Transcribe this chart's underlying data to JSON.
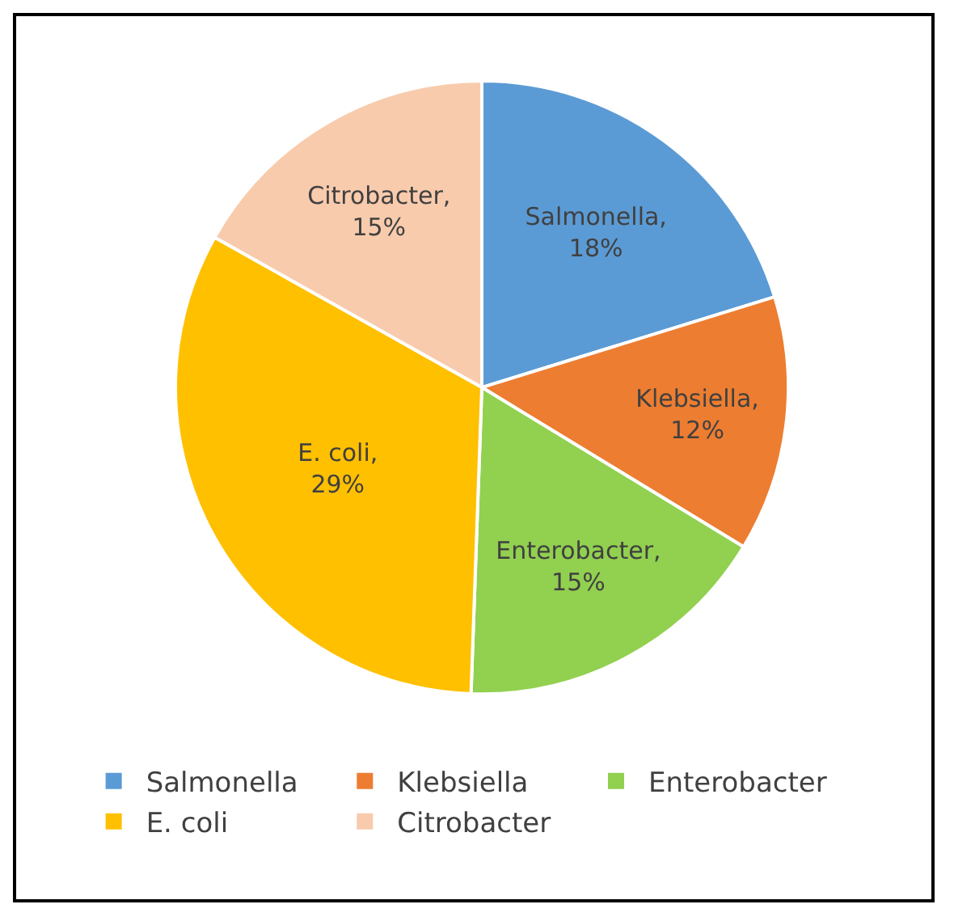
{
  "chart_data": {
    "type": "pie",
    "categories": [
      "Salmonella",
      "Klebsiella",
      "Enterobacter",
      "E. coli",
      "Citrobacter"
    ],
    "values": [
      18,
      12,
      15,
      29,
      15
    ],
    "colors": [
      "#5b9bd5",
      "#ed7d31",
      "#92d050",
      "#ffc000",
      "#f8cbad"
    ],
    "value_labels": [
      "Salmonella, 18%",
      "Klebsiella, 12%",
      "Enterobacter, 15%",
      "E. coli, 29%",
      "Citrobacter, 15%"
    ],
    "legend": "bottom"
  }
}
